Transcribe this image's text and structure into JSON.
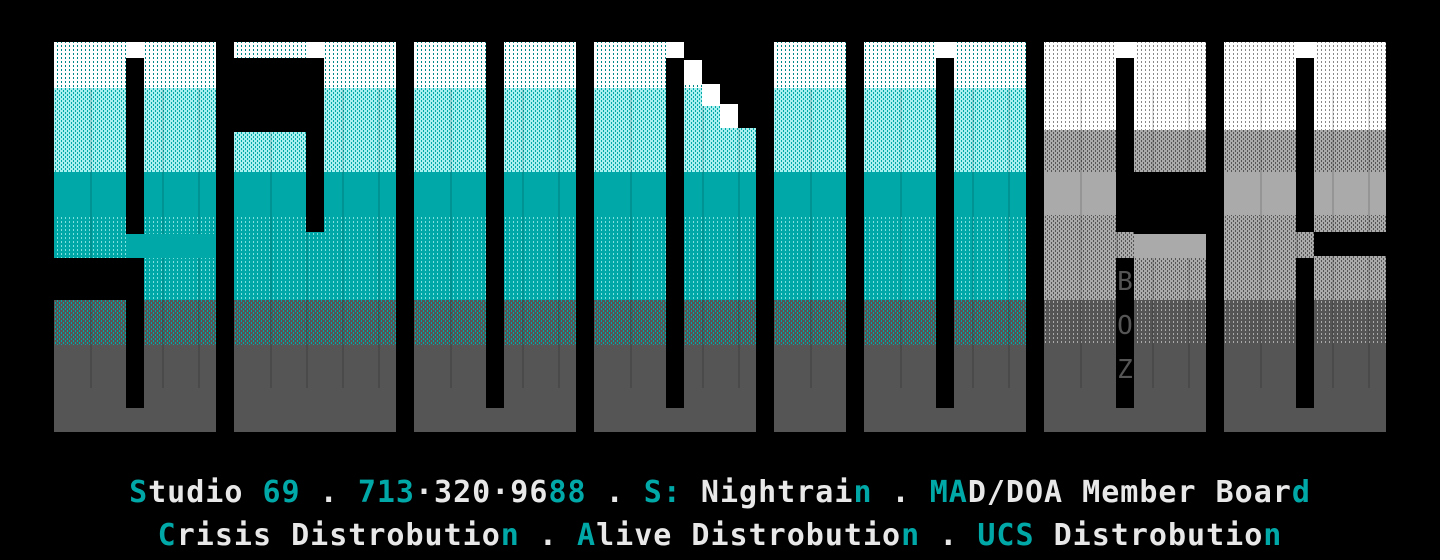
{
  "logo": {
    "name": "STUDIO 69",
    "signature": [
      "B",
      "O",
      "Z"
    ],
    "colors": {
      "background": "#000000",
      "cyan_light": "#a8f0f0",
      "cyan": "#00a8a8",
      "gray": "#555555",
      "gray_light": "#aaaaaa",
      "white": "#ffffff"
    }
  },
  "footer": {
    "colors": {
      "cyan": "#00a8a8",
      "white": "#e8e8e8"
    },
    "line1": [
      {
        "text": "S",
        "color": "cyan"
      },
      {
        "text": "tudio ",
        "color": "white"
      },
      {
        "text": "69",
        "color": "cyan"
      },
      {
        "text": " . ",
        "color": "white"
      },
      {
        "text": "713",
        "color": "cyan"
      },
      {
        "text": "·320·96",
        "color": "white"
      },
      {
        "text": "88",
        "color": "cyan"
      },
      {
        "text": " . ",
        "color": "white"
      },
      {
        "text": "S:",
        "color": "cyan"
      },
      {
        "text": " Nightrai",
        "color": "white"
      },
      {
        "text": "n",
        "color": "cyan"
      },
      {
        "text": " . ",
        "color": "white"
      },
      {
        "text": "MA",
        "color": "cyan"
      },
      {
        "text": "D/DOA Member Boar",
        "color": "white"
      },
      {
        "text": "d",
        "color": "cyan"
      }
    ],
    "line2": [
      {
        "text": "C",
        "color": "cyan"
      },
      {
        "text": "risis Distrobutio",
        "color": "white"
      },
      {
        "text": "n",
        "color": "cyan"
      },
      {
        "text": " . ",
        "color": "white"
      },
      {
        "text": "A",
        "color": "cyan"
      },
      {
        "text": "live Distrobutio",
        "color": "white"
      },
      {
        "text": "n",
        "color": "cyan"
      },
      {
        "text": " . ",
        "color": "white"
      },
      {
        "text": "UCS",
        "color": "cyan"
      },
      {
        "text": " Distrobutio",
        "color": "white"
      },
      {
        "text": "n",
        "color": "cyan"
      }
    ]
  }
}
